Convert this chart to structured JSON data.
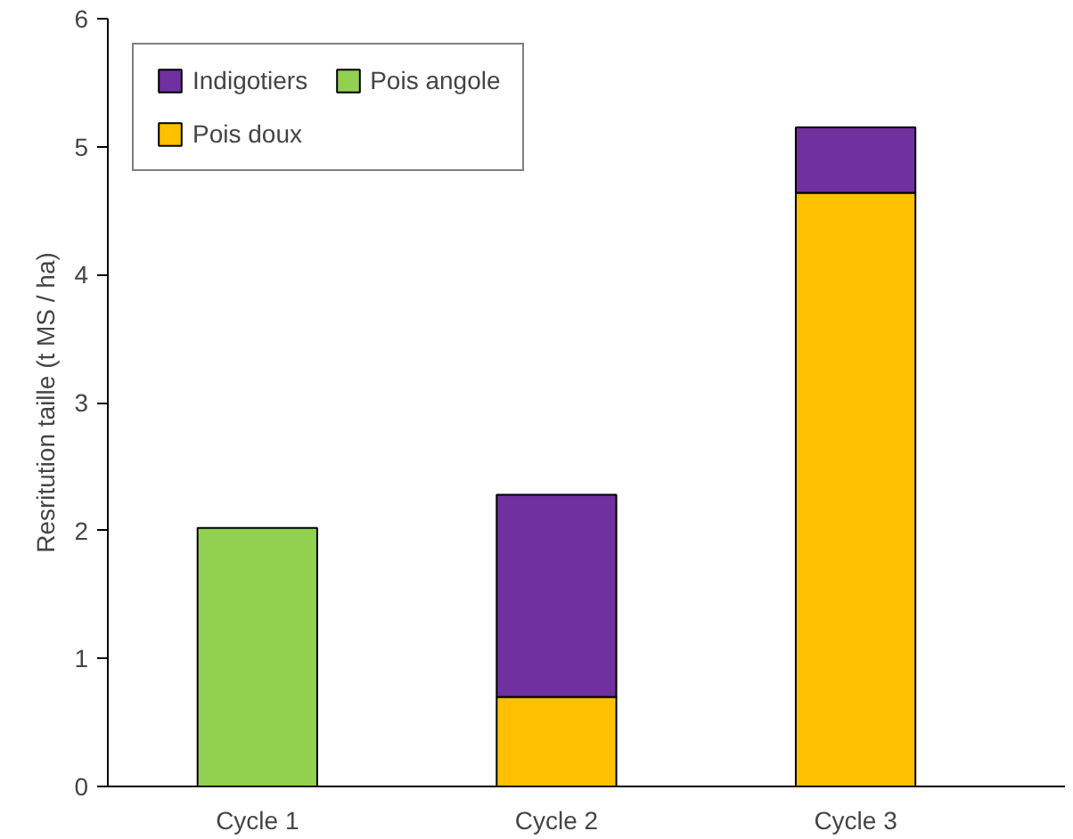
{
  "chart_data": {
    "type": "bar",
    "stacked": true,
    "ylabel": "Resritution taille (t MS / ha)",
    "categories": [
      "Cycle 1",
      "Cycle 2",
      "Cycle 3"
    ],
    "series": [
      {
        "name": "Pois angole",
        "color": "#92d050",
        "values": [
          2.02,
          null,
          null
        ]
      },
      {
        "name": "Pois doux",
        "color": "#ffc000",
        "values": [
          null,
          0.7,
          4.64
        ]
      },
      {
        "name": "Indigotiers",
        "color": "#7030a0",
        "values": [
          null,
          1.58,
          0.51
        ]
      }
    ],
    "ylim": [
      0,
      6
    ],
    "yticks": [
      0,
      1,
      2,
      3,
      4,
      5,
      6
    ],
    "grid": false,
    "legend": "top left"
  }
}
